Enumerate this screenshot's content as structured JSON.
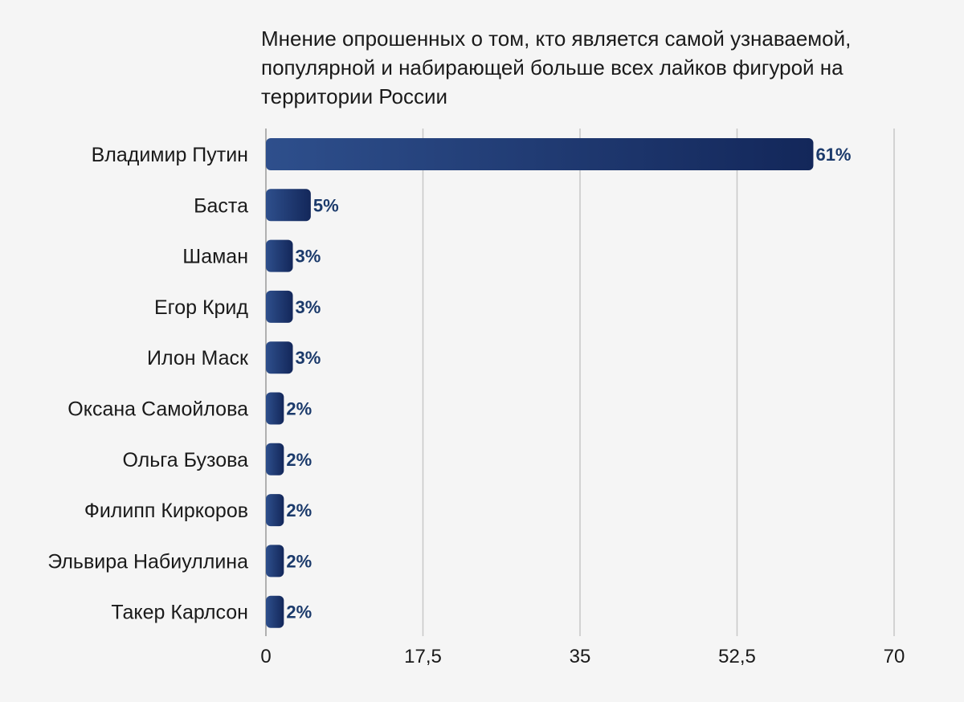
{
  "chart_data": {
    "type": "bar",
    "orientation": "horizontal",
    "title_lines": [
      "Мнение опрошенных о том, кто является самой узнаваемой,",
      "популярной и набирающей больше всех лайков фигурой на",
      "территории России"
    ],
    "categories": [
      "Владимир Путин",
      "Баста",
      "Шаман",
      "Егор Крид",
      "Илон Маск",
      "Оксана Самойлова",
      "Ольга Бузова",
      "Филипп Киркоров",
      "Эльвира Набиуллина",
      "Такер Карлсон"
    ],
    "values": [
      61,
      5,
      3,
      3,
      3,
      2,
      2,
      2,
      2,
      2
    ],
    "value_labels": [
      "61%",
      "5%",
      "3%",
      "3%",
      "3%",
      "2%",
      "2%",
      "2%",
      "2%",
      "2%"
    ],
    "xlim": [
      0,
      70
    ],
    "xticks": [
      0,
      17.5,
      35,
      52.5,
      70
    ],
    "xtick_labels": [
      "0",
      "17,5",
      "35",
      "52,5",
      "70"
    ],
    "grid": true,
    "bar_color_start": "#2e4f8c",
    "bar_color_end": "#13275a"
  }
}
